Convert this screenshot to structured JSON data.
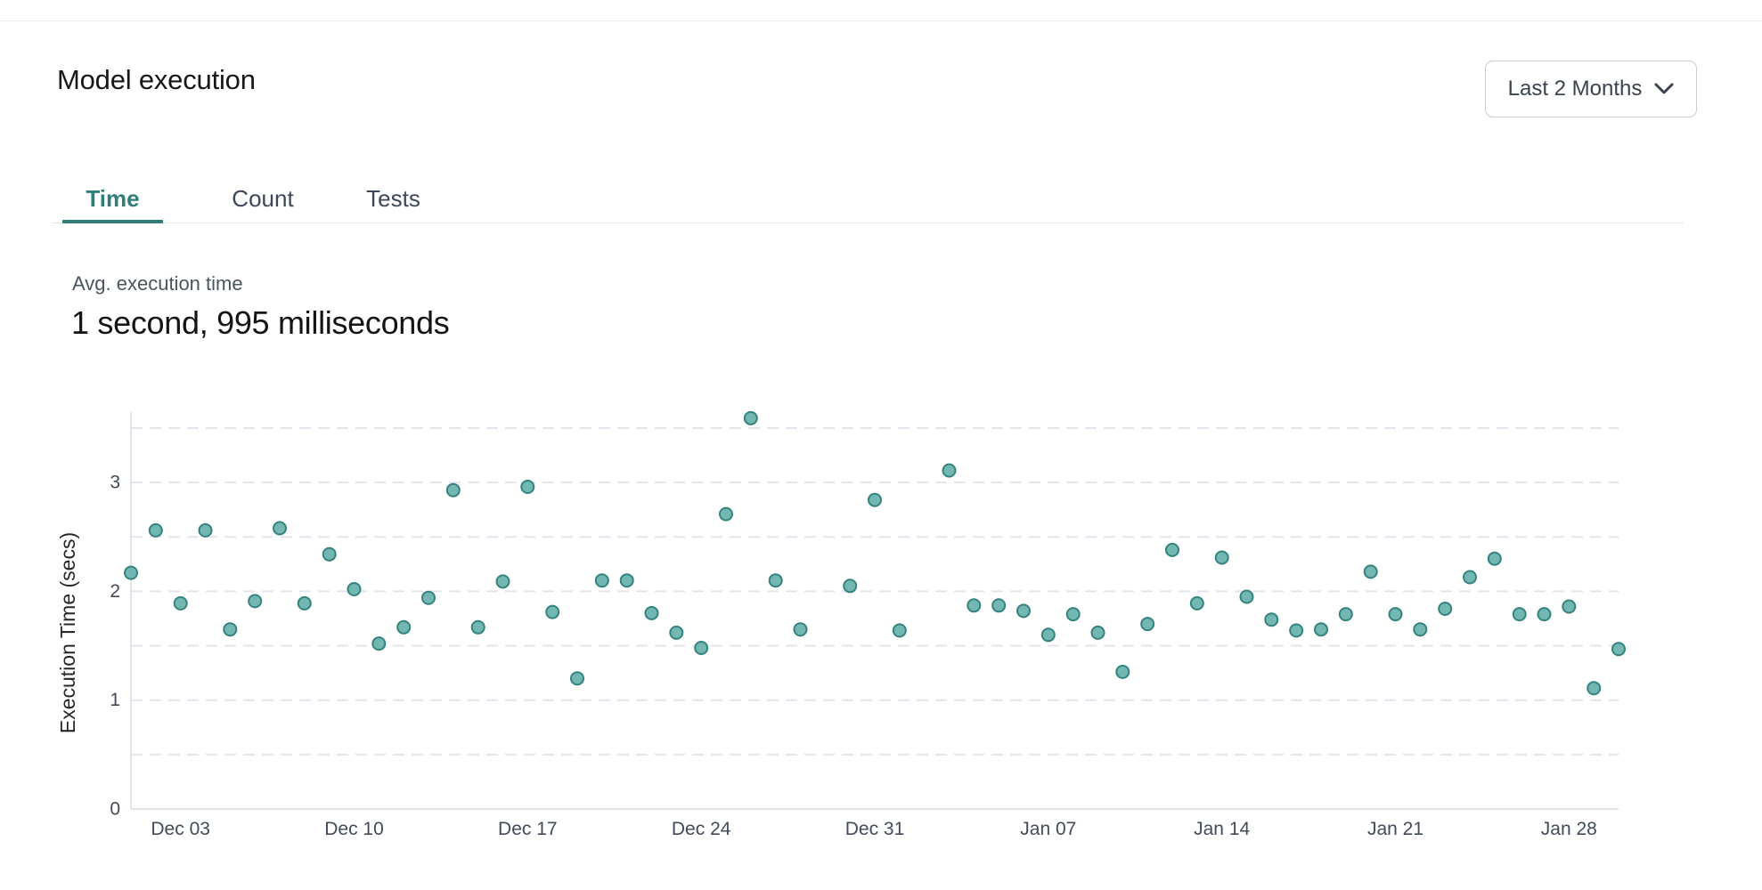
{
  "header": {
    "title": "Model execution",
    "range_selector": {
      "label": "Last 2 Months"
    }
  },
  "tabs": [
    {
      "label": "Time",
      "active": true
    },
    {
      "label": "Count",
      "active": false
    },
    {
      "label": "Tests",
      "active": false
    }
  ],
  "stat": {
    "label": "Avg. execution time",
    "value": "1 second, 995 milliseconds"
  },
  "colors": {
    "accent_teal": "#2f7e79",
    "point_fill": "#73b7b3",
    "point_stroke": "#35837f",
    "gridline": "#e4e4ed",
    "axis_line": "#d8dce2",
    "tick_text": "#414b59",
    "axis_title_text": "#23272b"
  },
  "chart_data": {
    "type": "scatter",
    "title": "",
    "xlabel": "",
    "ylabel": "Execution Time (secs)",
    "ylim": [
      0,
      3.65
    ],
    "yticks": [
      0,
      1,
      2,
      3
    ],
    "grid": "dashed horizontal every 0.5",
    "x_domain_days": 60,
    "x_tick_labels": [
      "Dec 03",
      "Dec 10",
      "Dec 17",
      "Dec 24",
      "Dec 31",
      "Jan 07",
      "Jan 14",
      "Jan 21",
      "Jan 28"
    ],
    "x_tick_day_index": [
      2,
      9,
      16,
      23,
      30,
      37,
      44,
      51,
      58
    ],
    "points": [
      {
        "day": 0,
        "date": "Dec 01",
        "value": 2.17
      },
      {
        "day": 1,
        "date": "Dec 02",
        "value": 2.56
      },
      {
        "day": 2,
        "date": "Dec 03",
        "value": 1.89
      },
      {
        "day": 3,
        "date": "Dec 04",
        "value": 2.56
      },
      {
        "day": 4,
        "date": "Dec 05",
        "value": 1.65
      },
      {
        "day": 5,
        "date": "Dec 06",
        "value": 1.91
      },
      {
        "day": 6,
        "date": "Dec 07",
        "value": 2.58
      },
      {
        "day": 7,
        "date": "Dec 08",
        "value": 1.89
      },
      {
        "day": 8,
        "date": "Dec 09",
        "value": 2.34
      },
      {
        "day": 9,
        "date": "Dec 10",
        "value": 2.02
      },
      {
        "day": 10,
        "date": "Dec 11",
        "value": 1.52
      },
      {
        "day": 11,
        "date": "Dec 12",
        "value": 1.67
      },
      {
        "day": 12,
        "date": "Dec 13",
        "value": 1.94
      },
      {
        "day": 13,
        "date": "Dec 14",
        "value": 2.93
      },
      {
        "day": 14,
        "date": "Dec 15",
        "value": 1.67
      },
      {
        "day": 15,
        "date": "Dec 16",
        "value": 2.09
      },
      {
        "day": 16,
        "date": "Dec 17",
        "value": 2.96
      },
      {
        "day": 17,
        "date": "Dec 18",
        "value": 1.81
      },
      {
        "day": 18,
        "date": "Dec 19",
        "value": 1.2
      },
      {
        "day": 19,
        "date": "Dec 20",
        "value": 2.1
      },
      {
        "day": 20,
        "date": "Dec 21",
        "value": 2.1
      },
      {
        "day": 21,
        "date": "Dec 22",
        "value": 1.8
      },
      {
        "day": 22,
        "date": "Dec 23",
        "value": 1.62
      },
      {
        "day": 23,
        "date": "Dec 24",
        "value": 1.48
      },
      {
        "day": 24,
        "date": "Dec 25",
        "value": 2.71
      },
      {
        "day": 25,
        "date": "Dec 26",
        "value": 3.59
      },
      {
        "day": 26,
        "date": "Dec 27",
        "value": 2.1
      },
      {
        "day": 27,
        "date": "Dec 28",
        "value": 1.65
      },
      {
        "day": 29,
        "date": "Dec 30",
        "value": 2.05
      },
      {
        "day": 30,
        "date": "Dec 31",
        "value": 2.84
      },
      {
        "day": 31,
        "date": "Jan 01",
        "value": 1.64
      },
      {
        "day": 33,
        "date": "Jan 03",
        "value": 3.11
      },
      {
        "day": 34,
        "date": "Jan 04",
        "value": 1.87
      },
      {
        "day": 35,
        "date": "Jan 05",
        "value": 1.87
      },
      {
        "day": 36,
        "date": "Jan 06",
        "value": 1.82
      },
      {
        "day": 37,
        "date": "Jan 07",
        "value": 1.6
      },
      {
        "day": 38,
        "date": "Jan 08",
        "value": 1.79
      },
      {
        "day": 39,
        "date": "Jan 09",
        "value": 1.62
      },
      {
        "day": 40,
        "date": "Jan 10",
        "value": 1.26
      },
      {
        "day": 41,
        "date": "Jan 11",
        "value": 1.7
      },
      {
        "day": 42,
        "date": "Jan 12",
        "value": 2.38
      },
      {
        "day": 43,
        "date": "Jan 13",
        "value": 1.89
      },
      {
        "day": 44,
        "date": "Jan 14",
        "value": 2.31
      },
      {
        "day": 45,
        "date": "Jan 15",
        "value": 1.95
      },
      {
        "day": 46,
        "date": "Jan 16",
        "value": 1.74
      },
      {
        "day": 47,
        "date": "Jan 17",
        "value": 1.64
      },
      {
        "day": 48,
        "date": "Jan 18",
        "value": 1.65
      },
      {
        "day": 49,
        "date": "Jan 19",
        "value": 1.79
      },
      {
        "day": 50,
        "date": "Jan 20",
        "value": 2.18
      },
      {
        "day": 51,
        "date": "Jan 21",
        "value": 1.79
      },
      {
        "day": 52,
        "date": "Jan 22",
        "value": 1.65
      },
      {
        "day": 53,
        "date": "Jan 23",
        "value": 1.84
      },
      {
        "day": 54,
        "date": "Jan 24",
        "value": 2.13
      },
      {
        "day": 55,
        "date": "Jan 25",
        "value": 2.3
      },
      {
        "day": 56,
        "date": "Jan 26",
        "value": 1.79
      },
      {
        "day": 57,
        "date": "Jan 27",
        "value": 1.79
      },
      {
        "day": 58,
        "date": "Jan 28",
        "value": 1.86
      },
      {
        "day": 59,
        "date": "Jan 29",
        "value": 1.11
      },
      {
        "day": 60,
        "date": "Jan 30",
        "value": 1.47
      }
    ]
  }
}
